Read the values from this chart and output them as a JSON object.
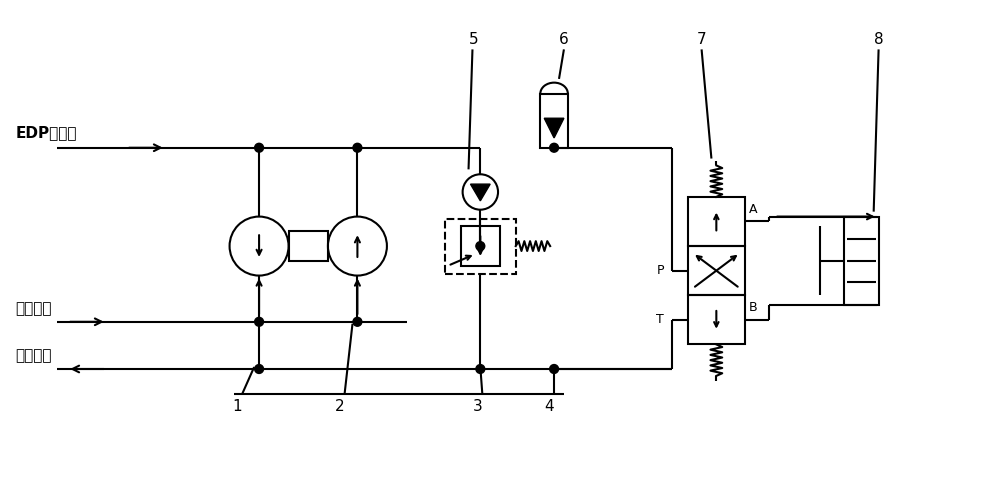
{
  "bg_color": "#ffffff",
  "line_color": "#000000",
  "lw": 1.5,
  "lw_thin": 1.0,
  "labels": {
    "edp": "EDP低压油",
    "tank_in": "油箱吸油",
    "tank_out": "油箱回油",
    "n1": "1",
    "n2": "2",
    "n3": "3",
    "n4": "4",
    "n5": "5",
    "n6": "6",
    "n7": "7",
    "n8": "8",
    "P": "P",
    "A": "A",
    "T": "T",
    "B": "B"
  },
  "figsize": [
    10.0,
    5.01
  ],
  "dpi": 100
}
